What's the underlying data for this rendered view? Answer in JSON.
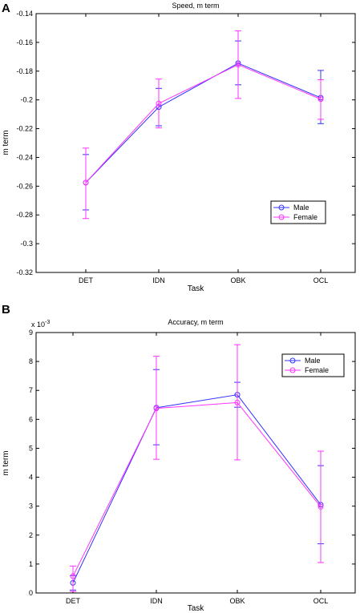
{
  "panels": [
    {
      "letter": "A"
    },
    {
      "letter": "B"
    }
  ],
  "colors": {
    "male": "#3333ff",
    "female": "#ff33ff",
    "axis": "#000000"
  },
  "chart_data": [
    {
      "type": "line",
      "title": "Speed, m term",
      "xlabel": "Task",
      "ylabel": "m term",
      "categories": [
        "DET",
        "IDN",
        "OBK",
        "OCL"
      ],
      "ylim": [
        -0.32,
        -0.14
      ],
      "yticks": [
        -0.14,
        -0.16,
        -0.18,
        -0.2,
        -0.22,
        -0.24,
        -0.26,
        -0.28,
        -0.3,
        -0.32
      ],
      "ytick_labels": [
        "-0.14",
        "-0.16",
        "-0.18",
        "-0.2",
        "-0.22",
        "-0.24",
        "-0.26",
        "-0.28",
        "-0.3",
        "-0.32"
      ],
      "exponent_label": "",
      "legend": {
        "position": "lower-right",
        "entries": [
          "Male",
          "Female"
        ]
      },
      "series": [
        {
          "name": "Male",
          "color": "#3333ff",
          "values": [
            -0.2575,
            -0.205,
            -0.1745,
            -0.1985
          ],
          "err_low": [
            -0.2765,
            -0.218,
            -0.1895,
            -0.2165
          ],
          "err_high": [
            -0.238,
            -0.192,
            -0.159,
            -0.1795
          ]
        },
        {
          "name": "Female",
          "color": "#ff33ff",
          "values": [
            -0.2575,
            -0.2025,
            -0.1755,
            -0.1995
          ],
          "err_low": [
            -0.2825,
            -0.2195,
            -0.199,
            -0.2135
          ],
          "err_high": [
            -0.2335,
            -0.1855,
            -0.152,
            -0.186
          ]
        }
      ]
    },
    {
      "type": "line",
      "title": "Accuracy, m term",
      "xlabel": "Task",
      "ylabel": "m term",
      "categories": [
        "DET",
        "IDN",
        "OBK",
        "OCL"
      ],
      "ylim": [
        0,
        9
      ],
      "yticks": [
        0,
        1,
        2,
        3,
        4,
        5,
        6,
        7,
        8,
        9
      ],
      "ytick_labels": [
        "0",
        "1",
        "2",
        "3",
        "4",
        "5",
        "6",
        "7",
        "8",
        "9"
      ],
      "exponent_label": "x 10",
      "exponent_power": "-3",
      "legend": {
        "position": "top-right",
        "entries": [
          "Male",
          "Female"
        ]
      },
      "series": [
        {
          "name": "Male",
          "color": "#3333ff",
          "values": [
            0.35,
            6.4,
            6.85,
            3.05
          ],
          "err_low": [
            0.1,
            5.12,
            6.42,
            1.7
          ],
          "err_high": [
            0.6,
            7.72,
            7.28,
            4.4
          ]
        },
        {
          "name": "Female",
          "color": "#ff33ff",
          "values": [
            0.58,
            6.38,
            6.58,
            2.98
          ],
          "err_low": [
            0.05,
            4.62,
            4.6,
            1.05
          ],
          "err_high": [
            0.93,
            8.18,
            8.58,
            4.9
          ]
        }
      ]
    }
  ]
}
